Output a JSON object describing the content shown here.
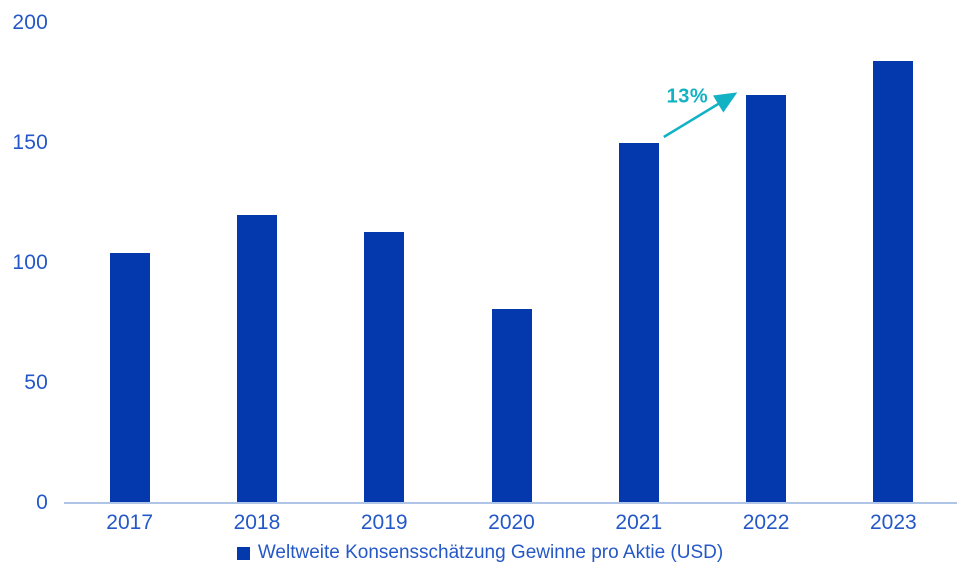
{
  "chart_data": {
    "type": "bar",
    "title": "",
    "categories": [
      "2017",
      "2018",
      "2019",
      "2020",
      "2021",
      "2022",
      "2023"
    ],
    "values": [
      104,
      120,
      113,
      81,
      150,
      170,
      184
    ],
    "series_name": "Weltweite Konsensschätzung Gewinne pro Aktie (USD)",
    "xlabel": "",
    "ylabel": "",
    "ylim": [
      0,
      200
    ],
    "yticks": [
      0,
      50,
      100,
      150,
      200
    ],
    "grid": false,
    "legend_position": "bottom-center",
    "legend_marker": "square",
    "annotation": {
      "text": "13%",
      "from_category": "2021",
      "to_category": "2022",
      "shape": "arrow-up-right"
    },
    "colors": {
      "bar": "#0439ad",
      "axis_label": "#2458c8",
      "axis_line": "#b0c4e8",
      "annotation": "#12b2c5",
      "background": "#ffffff"
    }
  }
}
